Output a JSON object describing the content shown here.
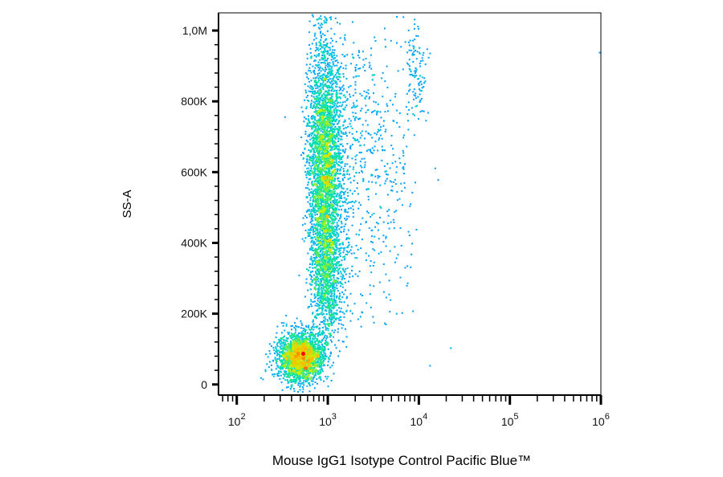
{
  "chart_data": {
    "type": "scatter",
    "title": "",
    "xlabel": "Mouse IgG1 Isotype Control Pacific Blue™",
    "ylabel": "SS-A",
    "x_scale": "log",
    "xlim": [
      63,
      1000000
    ],
    "ylim": [
      -30000,
      1050000
    ],
    "x_ticks": [
      {
        "base": "10",
        "exp": "2",
        "value": 100
      },
      {
        "base": "10",
        "exp": "3",
        "value": 1000
      },
      {
        "base": "10",
        "exp": "4",
        "value": 10000
      },
      {
        "base": "10",
        "exp": "5",
        "value": 100000
      },
      {
        "base": "10",
        "exp": "6",
        "value": 1000000
      }
    ],
    "y_ticks": [
      {
        "label": "0",
        "value": 0
      },
      {
        "label": "200K",
        "value": 200000
      },
      {
        "label": "400K",
        "value": 400000
      },
      {
        "label": "600K",
        "value": 600000
      },
      {
        "label": "800K",
        "value": 800000
      },
      {
        "label": "1,0M",
        "value": 1000000
      }
    ],
    "color_scale": [
      "#0000ff",
      "#00b4ff",
      "#00e6a0",
      "#c8f000",
      "#ffb400",
      "#ff0000"
    ],
    "populations": [
      {
        "center_x": 500,
        "center_y": 80000,
        "spread_log_x": 0.13,
        "spread_y": 35000,
        "density": "high",
        "events": 2200
      },
      {
        "center_x": 900,
        "center_y": 620000,
        "spread_log_x": 0.09,
        "spread_y": 180000,
        "density": "medium",
        "events": 3400
      },
      {
        "center_x": 950,
        "center_y": 300000,
        "spread_log_x": 0.08,
        "spread_y": 90000,
        "density": "low",
        "events": 700
      },
      {
        "center_x": 9000,
        "center_y": 880000,
        "spread_log_x": 0.06,
        "spread_y": 70000,
        "density": "low",
        "events": 110
      },
      {
        "center_x": 3500,
        "center_y": 600000,
        "spread_log_x": 0.2,
        "spread_y": 200000,
        "density": "sparse",
        "events": 350
      }
    ],
    "outliers": [
      {
        "x": 16000,
        "y": 580000
      },
      {
        "x": 13000,
        "y": 55000
      },
      {
        "x": 22000,
        "y": 105000
      },
      {
        "x": 950000,
        "y": 940000
      }
    ],
    "grid": false,
    "legend": "none"
  }
}
